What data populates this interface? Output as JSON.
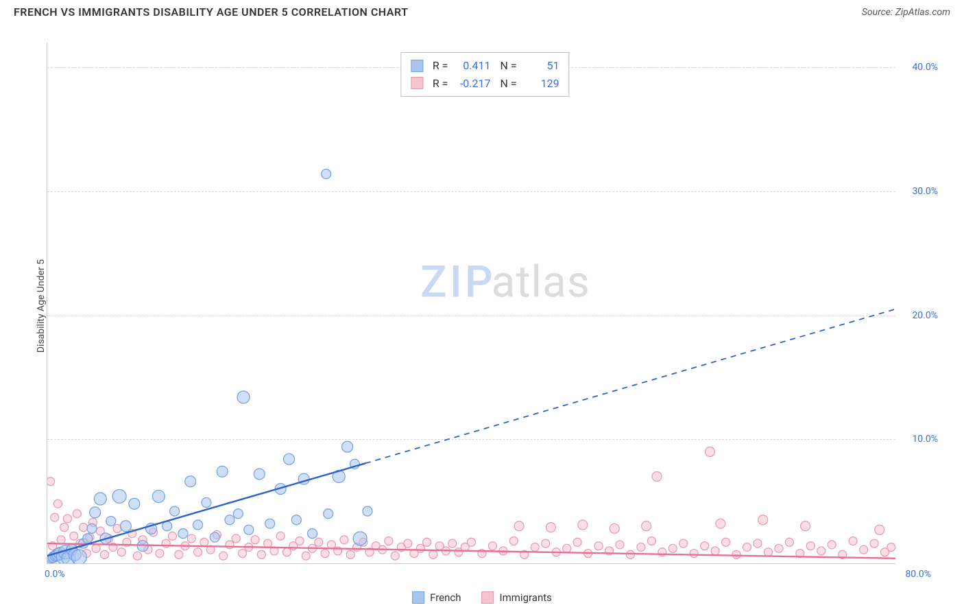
{
  "header": {
    "title": "FRENCH VS IMMIGRANTS DISABILITY AGE UNDER 5 CORRELATION CHART",
    "source_prefix": "Source: ",
    "source_name": "ZipAtlas.com"
  },
  "watermark": {
    "zip": "ZIP",
    "atlas": "atlas"
  },
  "axes": {
    "y_title": "Disability Age Under 5",
    "x_min_label": "0.0%",
    "x_max_label": "80.0%",
    "x_domain": [
      0,
      80
    ],
    "y_domain": [
      0,
      42
    ],
    "y_ticks": [
      {
        "value": 10,
        "label": "10.0%"
      },
      {
        "value": 20,
        "label": "20.0%"
      },
      {
        "value": 30,
        "label": "30.0%"
      },
      {
        "value": 40,
        "label": "40.0%"
      }
    ],
    "grid_color": "#d6d6d6",
    "axis_color": "#c8c8c8",
    "tick_label_color": "#3a6fd8",
    "tick_fontsize": 14
  },
  "series": {
    "french": {
      "label": "French",
      "color_fill": "#a9c4ef",
      "color_stroke": "#6f9fe6",
      "line_color": "#2a62c9",
      "r_value": "0.411",
      "n_value": "51",
      "trend": {
        "x1": 0,
        "y1": 0.6,
        "x2": 80,
        "y2": 20.5,
        "solid_until_x": 30
      },
      "points": [
        {
          "x": 0.2,
          "y": 0.3,
          "r": 6
        },
        {
          "x": 0.4,
          "y": 0.4,
          "r": 7
        },
        {
          "x": 0.6,
          "y": 0.5,
          "r": 8
        },
        {
          "x": 0.8,
          "y": 0.6,
          "r": 8
        },
        {
          "x": 1.0,
          "y": 0.7,
          "r": 9
        },
        {
          "x": 1.2,
          "y": 0.8,
          "r": 9
        },
        {
          "x": 1.5,
          "y": 0.5,
          "r": 10
        },
        {
          "x": 1.7,
          "y": 0.9,
          "r": 10
        },
        {
          "x": 2.0,
          "y": 0.4,
          "r": 10
        },
        {
          "x": 2.3,
          "y": 1.1,
          "r": 8
        },
        {
          "x": 2.6,
          "y": 0.7,
          "r": 9
        },
        {
          "x": 3.0,
          "y": 0.5,
          "r": 11
        },
        {
          "x": 3.4,
          "y": 1.6,
          "r": 7
        },
        {
          "x": 3.8,
          "y": 2.0,
          "r": 7
        },
        {
          "x": 4.2,
          "y": 2.8,
          "r": 7
        },
        {
          "x": 4.5,
          "y": 4.1,
          "r": 8
        },
        {
          "x": 5.0,
          "y": 5.2,
          "r": 9
        },
        {
          "x": 5.5,
          "y": 2.0,
          "r": 8
        },
        {
          "x": 6.0,
          "y": 3.4,
          "r": 7
        },
        {
          "x": 6.8,
          "y": 5.4,
          "r": 10
        },
        {
          "x": 7.4,
          "y": 3.0,
          "r": 8
        },
        {
          "x": 8.2,
          "y": 4.8,
          "r": 8
        },
        {
          "x": 9.0,
          "y": 1.4,
          "r": 8
        },
        {
          "x": 9.8,
          "y": 2.8,
          "r": 8
        },
        {
          "x": 10.5,
          "y": 5.4,
          "r": 9
        },
        {
          "x": 11.3,
          "y": 3.0,
          "r": 7
        },
        {
          "x": 12.0,
          "y": 4.2,
          "r": 7
        },
        {
          "x": 12.8,
          "y": 2.4,
          "r": 7
        },
        {
          "x": 13.5,
          "y": 6.6,
          "r": 8
        },
        {
          "x": 14.2,
          "y": 3.1,
          "r": 7
        },
        {
          "x": 15.0,
          "y": 4.9,
          "r": 7
        },
        {
          "x": 15.8,
          "y": 2.1,
          "r": 7
        },
        {
          "x": 16.5,
          "y": 7.4,
          "r": 8
        },
        {
          "x": 17.2,
          "y": 3.5,
          "r": 7
        },
        {
          "x": 18.0,
          "y": 4.0,
          "r": 7
        },
        {
          "x": 18.5,
          "y": 13.4,
          "r": 9
        },
        {
          "x": 19.0,
          "y": 2.7,
          "r": 7
        },
        {
          "x": 20.0,
          "y": 7.2,
          "r": 8
        },
        {
          "x": 21.0,
          "y": 3.2,
          "r": 7
        },
        {
          "x": 22.0,
          "y": 6.0,
          "r": 8
        },
        {
          "x": 22.8,
          "y": 8.4,
          "r": 8
        },
        {
          "x": 23.5,
          "y": 3.5,
          "r": 7
        },
        {
          "x": 24.2,
          "y": 6.8,
          "r": 8
        },
        {
          "x": 25.0,
          "y": 2.4,
          "r": 7
        },
        {
          "x": 26.3,
          "y": 31.4,
          "r": 7
        },
        {
          "x": 26.5,
          "y": 4.0,
          "r": 7
        },
        {
          "x": 27.5,
          "y": 7.0,
          "r": 9
        },
        {
          "x": 28.3,
          "y": 9.4,
          "r": 8
        },
        {
          "x": 29.0,
          "y": 8.0,
          "r": 7
        },
        {
          "x": 29.5,
          "y": 2.0,
          "r": 10
        },
        {
          "x": 30.2,
          "y": 4.2,
          "r": 7
        }
      ]
    },
    "immigrants": {
      "label": "Immigrants",
      "color_fill": "#f6c4d1",
      "color_stroke": "#ec95ae",
      "line_color": "#e86f93",
      "r_value": "-0.217",
      "n_value": "129",
      "trend": {
        "x1": 0,
        "y1": 1.6,
        "x2": 80,
        "y2": 0.4,
        "solid_until_x": 80
      },
      "points": [
        {
          "x": 0.3,
          "y": 6.6,
          "r": 6
        },
        {
          "x": 0.5,
          "y": 1.4,
          "r": 6
        },
        {
          "x": 0.7,
          "y": 3.7,
          "r": 6
        },
        {
          "x": 1.0,
          "y": 4.8,
          "r": 6
        },
        {
          "x": 1.3,
          "y": 1.9,
          "r": 6
        },
        {
          "x": 1.6,
          "y": 2.9,
          "r": 6
        },
        {
          "x": 1.9,
          "y": 3.6,
          "r": 6
        },
        {
          "x": 2.2,
          "y": 1.1,
          "r": 6
        },
        {
          "x": 2.5,
          "y": 2.2,
          "r": 6
        },
        {
          "x": 2.8,
          "y": 4.0,
          "r": 6
        },
        {
          "x": 3.1,
          "y": 1.6,
          "r": 6
        },
        {
          "x": 3.4,
          "y": 2.9,
          "r": 6
        },
        {
          "x": 3.7,
          "y": 0.8,
          "r": 6
        },
        {
          "x": 4.0,
          "y": 2.1,
          "r": 6
        },
        {
          "x": 4.3,
          "y": 3.3,
          "r": 6
        },
        {
          "x": 4.6,
          "y": 1.2,
          "r": 6
        },
        {
          "x": 5.0,
          "y": 2.6,
          "r": 6
        },
        {
          "x": 5.4,
          "y": 0.7,
          "r": 6
        },
        {
          "x": 5.8,
          "y": 2.0,
          "r": 6
        },
        {
          "x": 6.2,
          "y": 1.3,
          "r": 6
        },
        {
          "x": 6.6,
          "y": 2.8,
          "r": 6
        },
        {
          "x": 7.0,
          "y": 0.9,
          "r": 6
        },
        {
          "x": 7.5,
          "y": 1.7,
          "r": 6
        },
        {
          "x": 8.0,
          "y": 2.4,
          "r": 6
        },
        {
          "x": 8.5,
          "y": 0.6,
          "r": 6
        },
        {
          "x": 9.0,
          "y": 1.9,
          "r": 6
        },
        {
          "x": 9.5,
          "y": 1.1,
          "r": 6
        },
        {
          "x": 10.0,
          "y": 2.5,
          "r": 6
        },
        {
          "x": 10.6,
          "y": 0.8,
          "r": 6
        },
        {
          "x": 11.2,
          "y": 1.6,
          "r": 6
        },
        {
          "x": 11.8,
          "y": 2.2,
          "r": 6
        },
        {
          "x": 12.4,
          "y": 0.7,
          "r": 6
        },
        {
          "x": 13.0,
          "y": 1.4,
          "r": 6
        },
        {
          "x": 13.6,
          "y": 2.0,
          "r": 6
        },
        {
          "x": 14.2,
          "y": 0.9,
          "r": 6
        },
        {
          "x": 14.8,
          "y": 1.7,
          "r": 6
        },
        {
          "x": 15.4,
          "y": 1.1,
          "r": 6
        },
        {
          "x": 16.0,
          "y": 2.3,
          "r": 6
        },
        {
          "x": 16.6,
          "y": 0.6,
          "r": 6
        },
        {
          "x": 17.2,
          "y": 1.5,
          "r": 6
        },
        {
          "x": 17.8,
          "y": 2.0,
          "r": 6
        },
        {
          "x": 18.4,
          "y": 0.8,
          "r": 6
        },
        {
          "x": 19.0,
          "y": 1.3,
          "r": 6
        },
        {
          "x": 19.6,
          "y": 1.9,
          "r": 6
        },
        {
          "x": 20.2,
          "y": 0.7,
          "r": 6
        },
        {
          "x": 20.8,
          "y": 1.6,
          "r": 6
        },
        {
          "x": 21.4,
          "y": 1.0,
          "r": 6
        },
        {
          "x": 22.0,
          "y": 2.2,
          "r": 6
        },
        {
          "x": 22.6,
          "y": 0.9,
          "r": 6
        },
        {
          "x": 23.2,
          "y": 1.4,
          "r": 6
        },
        {
          "x": 23.8,
          "y": 1.8,
          "r": 6
        },
        {
          "x": 24.4,
          "y": 0.6,
          "r": 6
        },
        {
          "x": 25.0,
          "y": 1.2,
          "r": 6
        },
        {
          "x": 25.6,
          "y": 1.7,
          "r": 6
        },
        {
          "x": 26.2,
          "y": 0.8,
          "r": 6
        },
        {
          "x": 26.8,
          "y": 1.5,
          "r": 6
        },
        {
          "x": 27.4,
          "y": 1.0,
          "r": 6
        },
        {
          "x": 28.0,
          "y": 1.9,
          "r": 6
        },
        {
          "x": 28.6,
          "y": 0.7,
          "r": 6
        },
        {
          "x": 29.2,
          "y": 1.3,
          "r": 6
        },
        {
          "x": 29.8,
          "y": 1.7,
          "r": 6
        },
        {
          "x": 30.4,
          "y": 0.9,
          "r": 6
        },
        {
          "x": 31.0,
          "y": 1.4,
          "r": 6
        },
        {
          "x": 31.6,
          "y": 1.1,
          "r": 6
        },
        {
          "x": 32.2,
          "y": 1.8,
          "r": 6
        },
        {
          "x": 32.8,
          "y": 0.6,
          "r": 6
        },
        {
          "x": 33.4,
          "y": 1.3,
          "r": 6
        },
        {
          "x": 34.0,
          "y": 1.6,
          "r": 6
        },
        {
          "x": 34.6,
          "y": 0.8,
          "r": 6
        },
        {
          "x": 35.2,
          "y": 1.2,
          "r": 6
        },
        {
          "x": 35.8,
          "y": 1.7,
          "r": 6
        },
        {
          "x": 36.4,
          "y": 0.7,
          "r": 6
        },
        {
          "x": 37.0,
          "y": 1.4,
          "r": 6
        },
        {
          "x": 37.6,
          "y": 1.0,
          "r": 6
        },
        {
          "x": 38.2,
          "y": 1.6,
          "r": 6
        },
        {
          "x": 38.8,
          "y": 0.9,
          "r": 6
        },
        {
          "x": 39.4,
          "y": 1.3,
          "r": 6
        },
        {
          "x": 40.0,
          "y": 1.7,
          "r": 6
        },
        {
          "x": 41.0,
          "y": 0.8,
          "r": 6
        },
        {
          "x": 42.0,
          "y": 1.4,
          "r": 6
        },
        {
          "x": 43.0,
          "y": 1.0,
          "r": 6
        },
        {
          "x": 44.0,
          "y": 1.8,
          "r": 6
        },
        {
          "x": 44.5,
          "y": 3.0,
          "r": 7
        },
        {
          "x": 45.0,
          "y": 0.7,
          "r": 6
        },
        {
          "x": 46.0,
          "y": 1.3,
          "r": 6
        },
        {
          "x": 47.0,
          "y": 1.6,
          "r": 6
        },
        {
          "x": 47.5,
          "y": 2.9,
          "r": 7
        },
        {
          "x": 48.0,
          "y": 0.9,
          "r": 6
        },
        {
          "x": 49.0,
          "y": 1.2,
          "r": 6
        },
        {
          "x": 50.0,
          "y": 1.7,
          "r": 6
        },
        {
          "x": 50.5,
          "y": 3.1,
          "r": 7
        },
        {
          "x": 51.0,
          "y": 0.8,
          "r": 6
        },
        {
          "x": 52.0,
          "y": 1.4,
          "r": 6
        },
        {
          "x": 53.0,
          "y": 1.0,
          "r": 6
        },
        {
          "x": 53.5,
          "y": 2.8,
          "r": 7
        },
        {
          "x": 54.0,
          "y": 1.5,
          "r": 6
        },
        {
          "x": 55.0,
          "y": 0.7,
          "r": 6
        },
        {
          "x": 56.0,
          "y": 1.3,
          "r": 6
        },
        {
          "x": 56.5,
          "y": 3.0,
          "r": 7
        },
        {
          "x": 57.0,
          "y": 1.8,
          "r": 6
        },
        {
          "x": 57.5,
          "y": 7.0,
          "r": 7
        },
        {
          "x": 58.0,
          "y": 0.9,
          "r": 6
        },
        {
          "x": 59.0,
          "y": 1.2,
          "r": 6
        },
        {
          "x": 60.0,
          "y": 1.6,
          "r": 6
        },
        {
          "x": 61.0,
          "y": 0.8,
          "r": 6
        },
        {
          "x": 62.0,
          "y": 1.4,
          "r": 6
        },
        {
          "x": 62.5,
          "y": 9.0,
          "r": 7
        },
        {
          "x": 63.0,
          "y": 1.0,
          "r": 6
        },
        {
          "x": 63.5,
          "y": 3.2,
          "r": 7
        },
        {
          "x": 64.0,
          "y": 1.7,
          "r": 6
        },
        {
          "x": 65.0,
          "y": 0.7,
          "r": 6
        },
        {
          "x": 66.0,
          "y": 1.3,
          "r": 6
        },
        {
          "x": 67.0,
          "y": 1.6,
          "r": 6
        },
        {
          "x": 67.5,
          "y": 3.5,
          "r": 7
        },
        {
          "x": 68.0,
          "y": 0.9,
          "r": 6
        },
        {
          "x": 69.0,
          "y": 1.2,
          "r": 6
        },
        {
          "x": 70.0,
          "y": 1.7,
          "r": 6
        },
        {
          "x": 71.0,
          "y": 0.8,
          "r": 6
        },
        {
          "x": 71.5,
          "y": 3.0,
          "r": 7
        },
        {
          "x": 72.0,
          "y": 1.4,
          "r": 6
        },
        {
          "x": 73.0,
          "y": 1.0,
          "r": 6
        },
        {
          "x": 74.0,
          "y": 1.5,
          "r": 6
        },
        {
          "x": 75.0,
          "y": 0.7,
          "r": 6
        },
        {
          "x": 76.0,
          "y": 1.8,
          "r": 6
        },
        {
          "x": 77.0,
          "y": 1.1,
          "r": 6
        },
        {
          "x": 78.0,
          "y": 1.6,
          "r": 6
        },
        {
          "x": 78.5,
          "y": 2.7,
          "r": 7
        },
        {
          "x": 79.0,
          "y": 0.9,
          "r": 6
        },
        {
          "x": 79.6,
          "y": 1.3,
          "r": 6
        }
      ]
    }
  },
  "stats_box": {
    "r_label": "R =",
    "n_label": "N ="
  },
  "legend": {
    "french": "French",
    "immigrants": "Immigrants"
  }
}
